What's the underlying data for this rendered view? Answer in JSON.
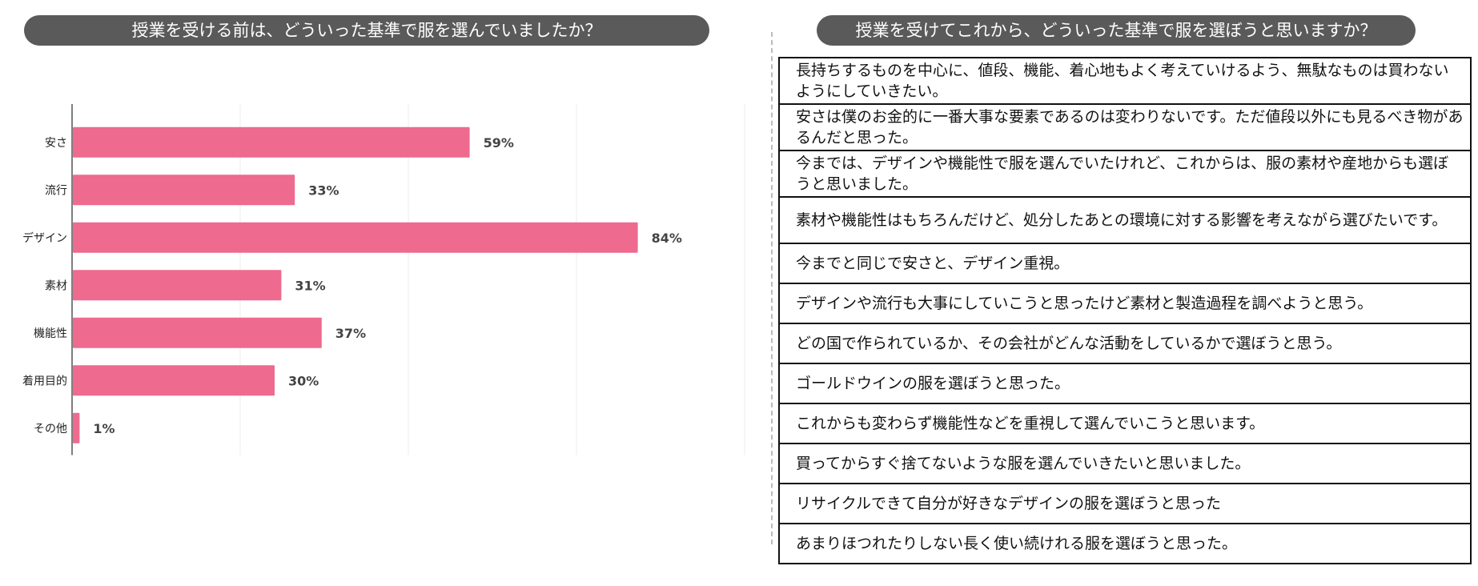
{
  "left_panel": {
    "title": "授業を受ける前は、どういった基準で服を選んでいましたか？"
  },
  "right_panel": {
    "title": "授業を受けてこれから、どういった基準で服を選ぼうと思いますか？",
    "answers": [
      "長持ちするものを中心に、値段、機能、着心地もよく考えていけるよう、無駄なものは買わないようにしていきたい。",
      "安さは僕のお金的に一番大事な要素であるのは変わりないです。ただ値段以外にも見るべき物があるんだと思った。",
      "今までは、デザインや機能性で服を選んでいたけれど、これからは、服の素材や産地からも選ぼうと思いました。",
      "素材や機能性はもちろんだけど、処分したあとの環境に対する影響を考えながら選びたいです。",
      "今までと同じで安さと、デザイン重視。",
      "デザインや流行も大事にしていこうと思ったけど素材と製造過程を調べようと思う。",
      "どの国で作られているか、その会社がどんな活動をしているかで選ぼうと思う。",
      "ゴールドウインの服を選ぼうと思った。",
      "これからも変わらず機能性などを重視して選んでいこうと思います。",
      "買ってからすぐ捨てないような服を選んでいきたいと思いました。",
      "リサイクルできて自分が好きなデザインの服を選ぼうと思った",
      "あまりほつれたりしない長く使い続けれる服を選ぼうと思った。"
    ]
  },
  "chart_data": {
    "type": "bar",
    "orientation": "horizontal",
    "categories": [
      "安さ",
      "流行",
      "デザイン",
      "素材",
      "機能性",
      "着用目的",
      "その他"
    ],
    "values": [
      59,
      33,
      84,
      31,
      37,
      30,
      1
    ],
    "value_labels": [
      "59%",
      "33%",
      "84%",
      "31%",
      "37%",
      "30%",
      "1%"
    ],
    "unit": "%",
    "xlim": [
      0,
      100
    ],
    "grid": true,
    "bar_color": "#ee6a8f"
  }
}
